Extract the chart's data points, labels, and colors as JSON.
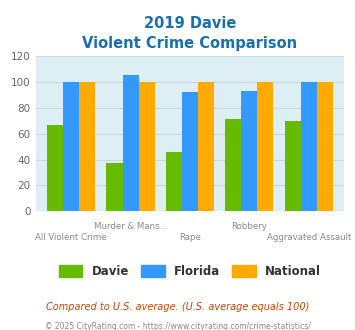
{
  "title_line1": "2019 Davie",
  "title_line2": "Violent Crime Comparison",
  "title_color": "#1a6faf",
  "categories": [
    "All Violent Crime",
    "Murder & Mans...",
    "Rape",
    "Robbery",
    "Aggravated Assault"
  ],
  "xtick_top": [
    "",
    "Murder & Mans...",
    "",
    "Robbery",
    ""
  ],
  "xtick_bottom": [
    "All Violent Crime",
    "",
    "Rape",
    "",
    "Aggravated Assault"
  ],
  "davie": [
    67,
    37,
    46,
    71,
    70
  ],
  "florida": [
    100,
    105,
    92,
    93,
    100
  ],
  "national": [
    100,
    100,
    100,
    100,
    100
  ],
  "davie_color": "#66bb00",
  "florida_color": "#3399ff",
  "national_color": "#ffaa00",
  "ylim": [
    0,
    120
  ],
  "yticks": [
    0,
    20,
    40,
    60,
    80,
    100,
    120
  ],
  "grid_color": "#c8dce0",
  "bg_color": "#ddeef5",
  "legend_labels": [
    "Davie",
    "Florida",
    "National"
  ],
  "footnote1": "Compared to U.S. average. (U.S. average equals 100)",
  "footnote2": "© 2025 CityRating.com - https://www.cityrating.com/crime-statistics/",
  "footnote1_color": "#cc4400",
  "footnote2_color": "#888888"
}
